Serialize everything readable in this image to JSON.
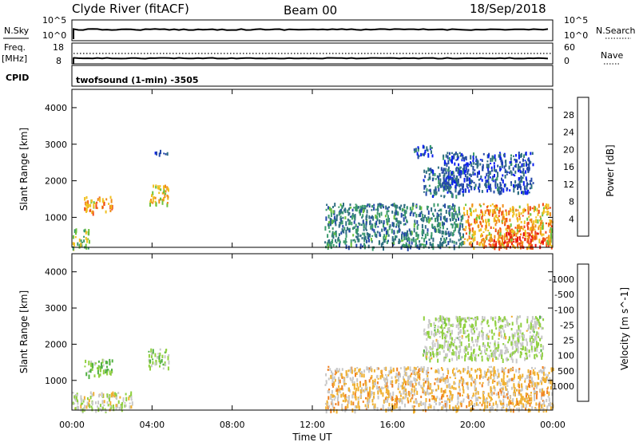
{
  "header": {
    "station": "Clyde River (fitACF)",
    "beam": "Beam 00",
    "date": "18/Sep/2018"
  },
  "top_panels": {
    "nsky_label": "N.Sky",
    "nsearch_label": "N.Search",
    "nsky_ticks": [
      "10^5",
      "10^0"
    ],
    "nsearch_ticks": [
      "10^5",
      "10^0"
    ],
    "freq_label": "Freq.",
    "freq_unit": "[MHz]",
    "freq_ticks": [
      "18",
      "8"
    ],
    "nave_label": "Nave",
    "nave_ticks": [
      "60",
      "0"
    ],
    "cpid_label": "CPID",
    "cpid_value": "twofsound (1-min) -3505"
  },
  "colors": {
    "power_scale": [
      "#0a1ef0",
      "#2448a8",
      "#2f6e82",
      "#3b9a6c",
      "#6cc23c",
      "#f0c020",
      "#f08c18",
      "#f04818",
      "#e80f0f"
    ],
    "velocity_scale": [
      "#1838c8",
      "#246caf",
      "#309090",
      "#50b040",
      "#90d040",
      "#c8c8c8",
      "#f0b030",
      "#f08020",
      "#f04010",
      "#e00000"
    ]
  },
  "axes": {
    "ylabel": "Slant Range [km]",
    "xlabel": "Time UT",
    "x_ticks": [
      "00:00",
      "04:00",
      "08:00",
      "12:00",
      "16:00",
      "20:00",
      "00:00"
    ],
    "y_ticks": [
      "1000",
      "2000",
      "3000",
      "4000"
    ]
  },
  "chart_data": [
    {
      "type": "heatmap",
      "title": "Power",
      "colorbar_label": "Power [dB]",
      "colorbar_ticks": [
        "4",
        "8",
        "12",
        "16",
        "20",
        "24",
        "28"
      ],
      "xlim": [
        0,
        24
      ],
      "ylim": [
        180,
        4500
      ],
      "x_unit": "hours UT",
      "y_unit": "km",
      "blobs": [
        {
          "x": [
            0.0,
            0.9
          ],
          "y": [
            180,
            700
          ],
          "value": 16
        },
        {
          "x": [
            0.6,
            2.0
          ],
          "y": [
            1150,
            1600
          ],
          "value": 22
        },
        {
          "x": [
            3.8,
            4.8
          ],
          "y": [
            1350,
            1900
          ],
          "value": 20
        },
        {
          "x": [
            4.0,
            4.8
          ],
          "y": [
            2750,
            2850
          ],
          "value": 6
        },
        {
          "x": [
            12.6,
            19.5
          ],
          "y": [
            200,
            1400
          ],
          "value": 10
        },
        {
          "x": [
            17.5,
            19.5
          ],
          "y": [
            1600,
            2400
          ],
          "value": 8
        },
        {
          "x": [
            19.5,
            24.0
          ],
          "y": [
            200,
            1400
          ],
          "value": 22
        },
        {
          "x": [
            21.0,
            23.5
          ],
          "y": [
            200,
            600
          ],
          "value": 28
        },
        {
          "x": [
            18.5,
            23.0
          ],
          "y": [
            1700,
            2800
          ],
          "value": 6
        },
        {
          "x": [
            17.0,
            18.0
          ],
          "y": [
            2700,
            3000
          ],
          "value": 6
        }
      ]
    },
    {
      "type": "heatmap",
      "title": "Velocity",
      "colorbar_label": "Velocity [m s^-1]",
      "colorbar_ticks": [
        "-1000",
        "-500",
        "-100",
        "-25",
        "25",
        "100",
        "500",
        "1000"
      ],
      "xlim": [
        0,
        24
      ],
      "ylim": [
        180,
        4500
      ],
      "x_unit": "hours UT",
      "y_unit": "km",
      "blobs": [
        {
          "x": [
            0.6,
            2.0
          ],
          "y": [
            1150,
            1600
          ],
          "value": -200
        },
        {
          "x": [
            3.8,
            4.8
          ],
          "y": [
            1350,
            1900
          ],
          "value": -100
        },
        {
          "x": [
            12.6,
            24.0
          ],
          "y": [
            200,
            1400
          ],
          "value": 300
        },
        {
          "x": [
            17.5,
            23.5
          ],
          "y": [
            1600,
            2800
          ],
          "value": 0
        },
        {
          "x": [
            0.0,
            3.0
          ],
          "y": [
            180,
            700
          ],
          "value": 80
        }
      ]
    }
  ]
}
